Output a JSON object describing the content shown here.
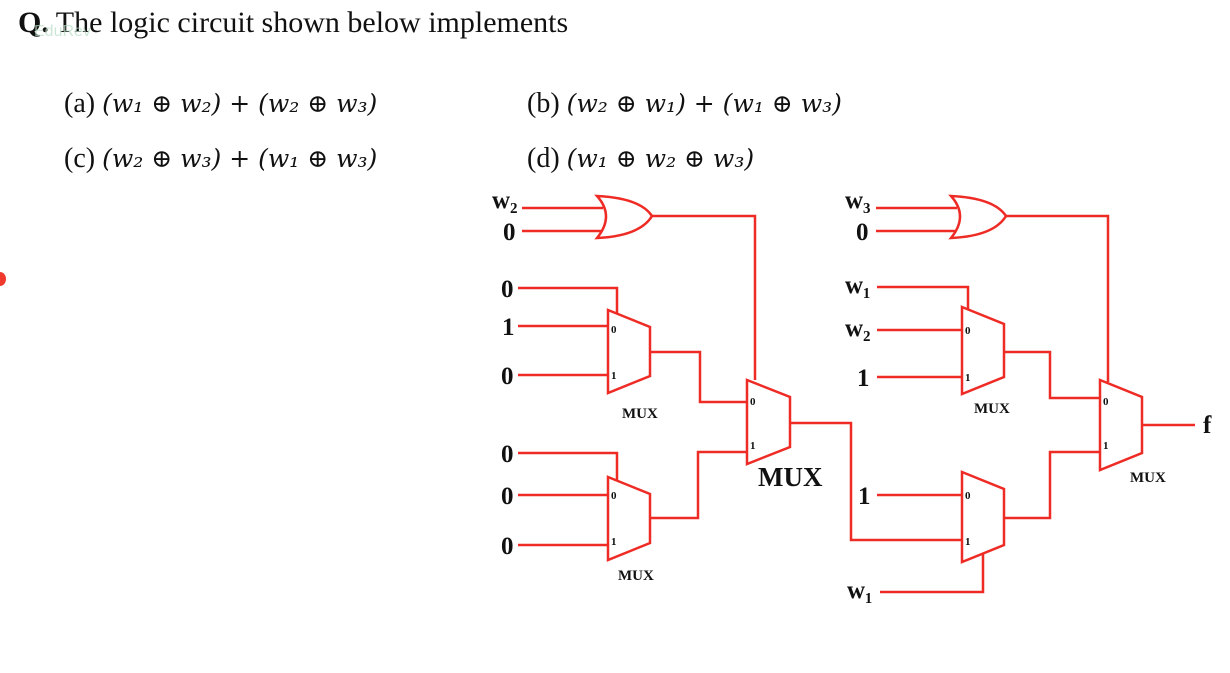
{
  "question": {
    "number": "Q.",
    "text": " The logic circuit shown below implements"
  },
  "options": [
    {
      "key": "(a)",
      "expr": "(w₁ ⊕ w₂) + (w₂ ⊕ w₃)"
    },
    {
      "key": "(b)",
      "expr": "(w₂ ⊕ w₁) + (w₁ ⊕ w₃)"
    },
    {
      "key": "(c)",
      "expr": "(w₂ ⊕ w₃) + (w₁ ⊕ w₃)"
    },
    {
      "key": "(d)",
      "expr": "(w₁ ⊕ w₂ ⊕ w₃)"
    }
  ],
  "circuit": {
    "colors": {
      "wire": "#ee2b24",
      "text": "#111111"
    },
    "inputs": {
      "or1_a": "w₂",
      "or1_b": "0",
      "muxA_sel": "0",
      "muxA_in0": "1",
      "muxA_in1": "0",
      "muxB_sel": "0",
      "muxB_in0": "0",
      "muxB_in1": "0",
      "or2_a": "w₃",
      "or2_b": "0",
      "muxD_sel": "w₁",
      "muxD_in0": "w₂",
      "muxD_in1": "1",
      "muxE_in0": "1",
      "muxE_sel": "w₁"
    },
    "mux_labels": {
      "a": "MUX",
      "b": "MUX",
      "c": "MUX",
      "d": "MUX",
      "f": "MUX"
    },
    "pin0": "0",
    "pin1": "1",
    "output": "f"
  }
}
